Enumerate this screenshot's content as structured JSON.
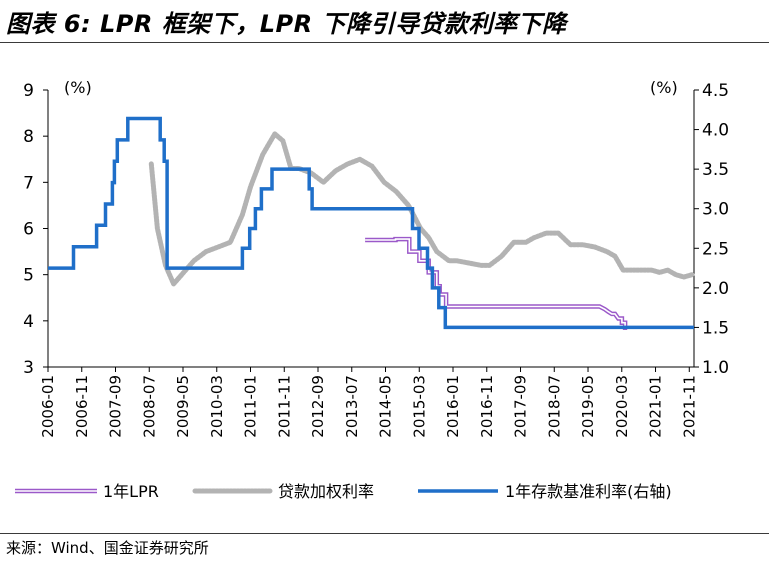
{
  "title": "图表 6:  LPR 框架下，LPR 下降引导贷款利率下降",
  "source": "来源：Wind、国金证券研究所",
  "chart_data": {
    "type": "line",
    "title": "图表 6:  LPR 框架下，LPR 下降引导贷款利率下降",
    "left_axis": {
      "unit": "(%)",
      "ylim": [
        3,
        9
      ],
      "ticks": [
        "3",
        "4",
        "5",
        "6",
        "7",
        "8",
        "9"
      ]
    },
    "right_axis": {
      "unit": "(%)",
      "ylim": [
        1.0,
        4.5
      ],
      "ticks": [
        "1.0",
        "1.5",
        "2.0",
        "2.5",
        "3.0",
        "3.5",
        "4.0",
        "4.5"
      ]
    },
    "x_range": [
      2006.0,
      2021.95
    ],
    "x_ticks": [
      "2006-01",
      "2006-11",
      "2007-09",
      "2008-07",
      "2009-05",
      "2010-03",
      "2011-01",
      "2011-11",
      "2012-09",
      "2013-07",
      "2014-05",
      "2015-03",
      "2016-01",
      "2016-11",
      "2017-09",
      "2018-07",
      "2019-05",
      "2020-03",
      "2021-01",
      "2021-11"
    ],
    "legend": [
      "1年LPR",
      "贷款加权利率",
      "1年存款基准利率(右轴)"
    ],
    "colors": {
      "lpr": "#9b59c9",
      "loan": "#b3b3b3",
      "deposit": "#1f6fc9"
    },
    "series": [
      {
        "name": "1年LPR",
        "axis": "left",
        "style": "double-line",
        "x": [
          2013.83,
          2014.58,
          2014.58,
          2014.92,
          2014.92,
          2015.17,
          2015.17,
          2015.4,
          2015.4,
          2015.6,
          2015.6,
          2015.67,
          2015.67,
          2015.83,
          2015.83,
          2019.62,
          2019.75,
          2019.83,
          2019.92,
          2020.0,
          2020.08,
          2020.17,
          2020.17,
          2020.25,
          2020.25,
          2020.3
        ],
        "values": [
          5.75,
          5.75,
          5.77,
          5.77,
          5.5,
          5.5,
          5.3,
          5.3,
          5.05,
          5.05,
          4.75,
          4.75,
          4.57,
          4.57,
          4.31,
          4.31,
          4.25,
          4.2,
          4.15,
          4.15,
          4.05,
          4.05,
          3.96,
          3.96,
          3.85,
          3.85
        ]
      },
      {
        "name": "贷款加权利率",
        "axis": "left",
        "x": [
          2008.55,
          2008.7,
          2008.9,
          2009.1,
          2009.3,
          2009.6,
          2009.9,
          2010.2,
          2010.5,
          2010.8,
          2011.0,
          2011.3,
          2011.6,
          2011.8,
          2012.0,
          2012.2,
          2012.5,
          2012.8,
          2013.1,
          2013.4,
          2013.7,
          2014.0,
          2014.3,
          2014.6,
          2014.9,
          2015.2,
          2015.4,
          2015.6,
          2015.9,
          2016.1,
          2016.4,
          2016.7,
          2016.9,
          2017.2,
          2017.5,
          2017.8,
          2018.0,
          2018.3,
          2018.6,
          2018.9,
          2019.2,
          2019.5,
          2019.8,
          2020.0,
          2020.2,
          2020.4,
          2020.7,
          2020.9,
          2021.1,
          2021.3,
          2021.5,
          2021.7,
          2021.9
        ],
        "values": [
          7.4,
          6.0,
          5.2,
          4.8,
          5.0,
          5.3,
          5.5,
          5.6,
          5.7,
          6.3,
          6.9,
          7.6,
          8.05,
          7.9,
          7.3,
          7.3,
          7.2,
          7.0,
          7.25,
          7.4,
          7.5,
          7.35,
          7.0,
          6.8,
          6.5,
          6.0,
          5.8,
          5.5,
          5.3,
          5.3,
          5.25,
          5.2,
          5.2,
          5.4,
          5.7,
          5.7,
          5.8,
          5.9,
          5.9,
          5.65,
          5.65,
          5.6,
          5.5,
          5.4,
          5.1,
          5.1,
          5.1,
          5.1,
          5.05,
          5.1,
          5.0,
          4.95,
          5.0
        ]
      },
      {
        "name": "1年存款基准利率(右轴)",
        "axis": "right",
        "x": [
          2006.0,
          2006.63,
          2006.63,
          2007.2,
          2007.2,
          2007.38,
          2007.38,
          2007.42,
          2007.42,
          2007.59,
          2007.59,
          2007.64,
          2007.64,
          2007.71,
          2007.71,
          2007.97,
          2007.97,
          2008.77,
          2008.77,
          2008.87,
          2008.87,
          2008.94,
          2008.94,
          2010.8,
          2010.8,
          2010.98,
          2010.98,
          2011.12,
          2011.12,
          2011.27,
          2011.27,
          2011.53,
          2011.53,
          2012.45,
          2012.45,
          2012.52,
          2012.52,
          2015.0,
          2015.0,
          2015.16,
          2015.16,
          2015.37,
          2015.37,
          2015.49,
          2015.49,
          2015.65,
          2015.65,
          2015.81,
          2015.81,
          2021.95
        ],
        "values": [
          2.25,
          2.25,
          2.52,
          2.52,
          2.79,
          2.79,
          2.79,
          2.79,
          3.06,
          3.06,
          3.33,
          3.33,
          3.6,
          3.6,
          3.87,
          3.87,
          4.14,
          4.14,
          3.87,
          3.87,
          3.6,
          3.6,
          2.25,
          2.25,
          2.5,
          2.5,
          2.75,
          2.75,
          3.0,
          3.0,
          3.25,
          3.25,
          3.5,
          3.5,
          3.25,
          3.25,
          3.0,
          3.0,
          2.75,
          2.75,
          2.5,
          2.5,
          2.25,
          2.25,
          2.0,
          2.0,
          1.75,
          1.75,
          1.5,
          1.5
        ]
      }
    ]
  }
}
